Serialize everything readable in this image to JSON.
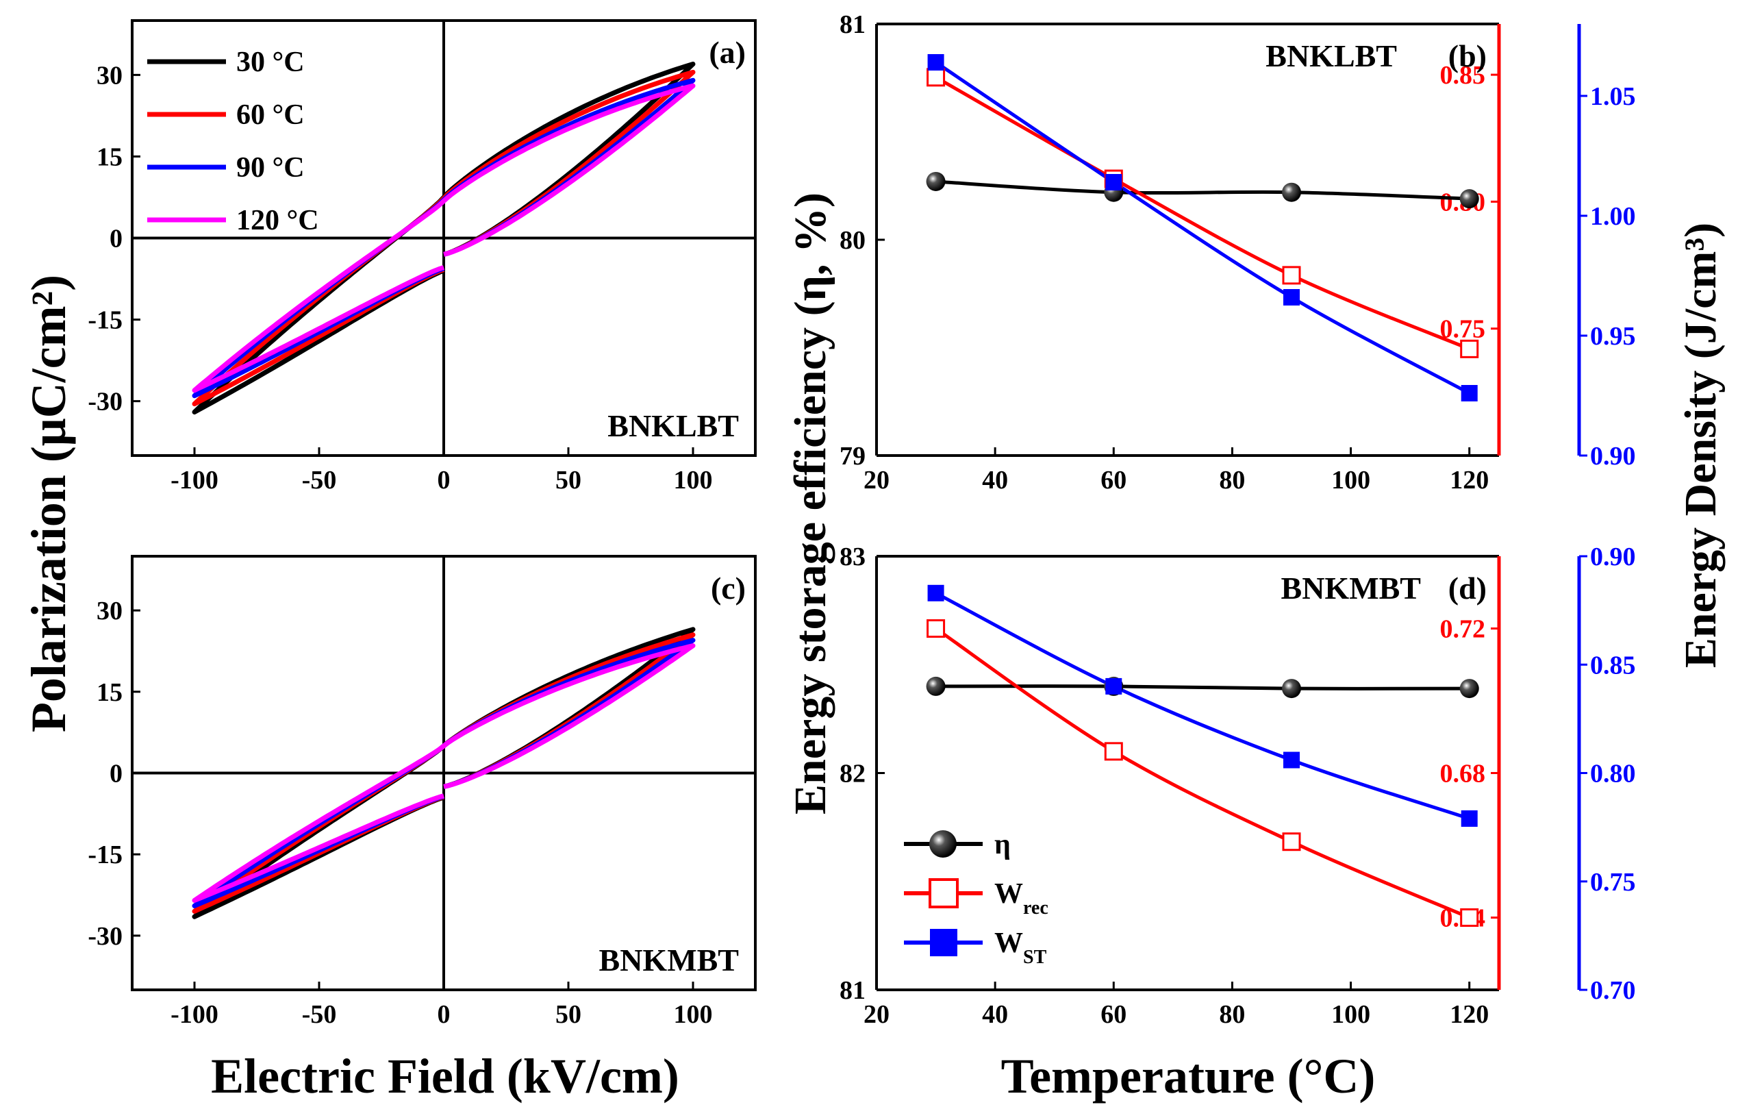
{
  "figure": {
    "y_axis_left_label": "Polarization (μC/cm²)",
    "x_axis_left_label": "Electric Field (kV/cm)",
    "y_axis_right_left_label": "Energy storage efficiency (η, %)",
    "y_axis_right_right_label": "Energy Density (J/cm³)",
    "x_axis_right_label": "Temperature (°C)"
  },
  "legend_pe": [
    {
      "label": "30 °C",
      "color": "#000000"
    },
    {
      "label": "60 °C",
      "color": "#ff0000"
    },
    {
      "label": "90 °C",
      "color": "#0000ff"
    },
    {
      "label": "120 °C",
      "color": "#ff00ff"
    }
  ],
  "legend_energy": [
    {
      "label": "η",
      "marker": "sphere",
      "color": "#000000"
    },
    {
      "label": "W",
      "sub": "rec",
      "marker": "open-square",
      "color": "#ff0000"
    },
    {
      "label": "W",
      "sub": "ST",
      "marker": "filled-square",
      "color": "#0000ff"
    }
  ],
  "chart_data": [
    {
      "panel": "(a)",
      "type": "line",
      "annotation": "BNKLBT",
      "xlabel": "Electric Field (kV/cm)",
      "ylabel": "Polarization (μC/cm²)",
      "xlim": [
        -125,
        125
      ],
      "ylim": [
        -40,
        40
      ],
      "xticks": [
        -100,
        -50,
        0,
        50,
        100
      ],
      "yticks": [
        -30,
        -15,
        0,
        15,
        30
      ],
      "series": [
        {
          "name": "30 °C",
          "color": "#000000",
          "pmax": 32,
          "pr": 7.5,
          "pr_down": -6,
          "pvirgin": -3
        },
        {
          "name": "60 °C",
          "color": "#ff0000",
          "pmax": 30.5,
          "pr": 7.3,
          "pr_down": -5.8,
          "pvirgin": -3
        },
        {
          "name": "90 °C",
          "color": "#0000ff",
          "pmax": 29,
          "pr": 7.0,
          "pr_down": -5.6,
          "pvirgin": -3
        },
        {
          "name": "120 °C",
          "color": "#ff00ff",
          "pmax": 28,
          "pr": 6.8,
          "pr_down": -5.4,
          "pvirgin": -3
        }
      ]
    },
    {
      "panel": "(b)",
      "type": "line",
      "annotation": "BNKLBT",
      "xlabel": "Temperature (°C)",
      "x": [
        30,
        60,
        90,
        120
      ],
      "xlim": [
        20,
        125
      ],
      "xticks": [
        20,
        40,
        60,
        80,
        100,
        120
      ],
      "y1": {
        "name": "η",
        "ylim": [
          79,
          81
        ],
        "ticks": [
          79,
          80,
          81
        ],
        "values": [
          80.27,
          80.22,
          80.22,
          80.19
        ]
      },
      "y2": {
        "name": "Wrec",
        "ylim": [
          0.7,
          0.87
        ],
        "ticks": [
          0.75,
          0.8,
          0.85
        ],
        "values": [
          0.849,
          0.809,
          0.771,
          0.742
        ]
      },
      "y3": {
        "name": "WST",
        "ylim": [
          0.9,
          1.08
        ],
        "ticks": [
          0.9,
          0.95,
          1.0,
          1.05
        ],
        "values": [
          1.064,
          1.014,
          0.966,
          0.926
        ]
      }
    },
    {
      "panel": "(c)",
      "type": "line",
      "annotation": "BNKMBT",
      "xlabel": "Electric Field (kV/cm)",
      "ylabel": "Polarization (μC/cm²)",
      "xlim": [
        -125,
        125
      ],
      "ylim": [
        -40,
        40
      ],
      "xticks": [
        -100,
        -50,
        0,
        50,
        100
      ],
      "yticks": [
        -30,
        -15,
        0,
        15,
        30
      ],
      "series": [
        {
          "name": "30 °C",
          "color": "#000000",
          "pmax": 26.5,
          "pr": 5,
          "pr_down": -4.5,
          "pvirgin": -2.5
        },
        {
          "name": "60 °C",
          "color": "#ff0000",
          "pmax": 25.5,
          "pr": 5,
          "pr_down": -4.4,
          "pvirgin": -2.5
        },
        {
          "name": "90 °C",
          "color": "#0000ff",
          "pmax": 24.5,
          "pr": 5,
          "pr_down": -4.3,
          "pvirgin": -2.5
        },
        {
          "name": "120 °C",
          "color": "#ff00ff",
          "pmax": 23.5,
          "pr": 5,
          "pr_down": -4.2,
          "pvirgin": -2.5
        }
      ]
    },
    {
      "panel": "(d)",
      "type": "line",
      "annotation": "BNKMBT",
      "xlabel": "Temperature (°C)",
      "x": [
        30,
        60,
        90,
        120
      ],
      "xlim": [
        20,
        125
      ],
      "xticks": [
        20,
        40,
        60,
        80,
        100,
        120
      ],
      "y1": {
        "name": "η",
        "ylim": [
          81,
          83
        ],
        "ticks": [
          81,
          82,
          83
        ],
        "values": [
          82.4,
          82.4,
          82.39,
          82.39
        ]
      },
      "y2": {
        "name": "Wrec",
        "ylim": [
          0.62,
          0.74
        ],
        "ticks": [
          0.64,
          0.68,
          0.72
        ],
        "values": [
          0.72,
          0.686,
          0.661,
          0.64
        ]
      },
      "y3": {
        "name": "WST",
        "ylim": [
          0.7,
          0.9
        ],
        "ticks": [
          0.7,
          0.75,
          0.8,
          0.85,
          0.9
        ],
        "values": [
          0.883,
          0.84,
          0.806,
          0.779
        ]
      }
    }
  ]
}
